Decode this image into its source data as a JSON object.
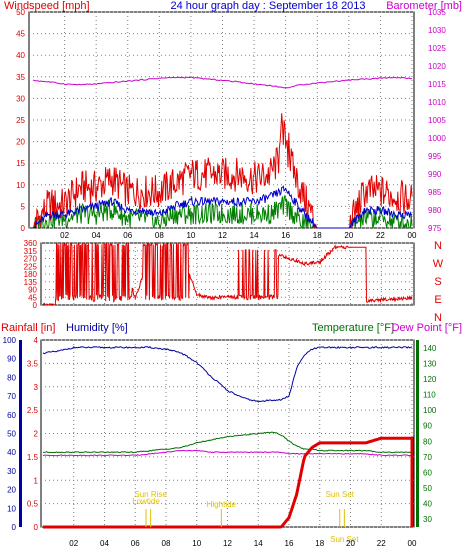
{
  "title": "24 hour graph day : September 18 2013",
  "colors": {
    "wind": "#e00000",
    "wind_avg": "#0000cc",
    "gust": "#008000",
    "baro": "#cc00cc",
    "humidity": "#0000a0",
    "temperature": "#007000",
    "dewpoint": "#cc00cc",
    "rain": "#e00000",
    "annotation": "#e0c000",
    "grid": "#808080"
  },
  "x_ticks": [
    "02",
    "04",
    "06",
    "08",
    "10",
    "12",
    "14",
    "16",
    "18",
    "20",
    "22",
    "00"
  ],
  "chart_data": [
    {
      "type": "line",
      "name": "wind-baro",
      "left_label": "Windspeed [mph]",
      "right_label": "Barometer [mb]",
      "left_ticks": [
        "0",
        "5",
        "10",
        "15",
        "20",
        "25",
        "30",
        "35",
        "40",
        "45",
        "50"
      ],
      "right_ticks": [
        "975",
        "980",
        "985",
        "990",
        "995",
        "1000",
        "1005",
        "1010",
        "1015",
        "1020",
        "1025",
        "1030",
        "1035"
      ],
      "ylim_left": [
        0,
        50
      ],
      "ylim_right": [
        975,
        1035
      ],
      "x": [
        0,
        1,
        2,
        3,
        4,
        5,
        6,
        7,
        8,
        9,
        10,
        11,
        12,
        13,
        14,
        15,
        16,
        17,
        18,
        19,
        20,
        21,
        22,
        23,
        24
      ],
      "series": [
        {
          "key": "windspeed",
          "values": [
            0,
            5,
            5,
            9,
            9,
            11,
            8,
            8,
            8,
            10,
            12,
            12,
            12,
            12,
            11,
            12,
            18,
            8,
            0,
            0,
            0,
            8,
            8,
            7,
            6
          ]
        },
        {
          "key": "average",
          "values": [
            0,
            3,
            3,
            4,
            5,
            6,
            4,
            4,
            3,
            5,
            6,
            6,
            6,
            6,
            6,
            7,
            9,
            4,
            0,
            0,
            0,
            4,
            4,
            3,
            3
          ]
        },
        {
          "key": "gust",
          "values": [
            0,
            2,
            2,
            3,
            3,
            4,
            2,
            2,
            1,
            3,
            3,
            3,
            3,
            3,
            3,
            3,
            5,
            1,
            0,
            0,
            0,
            2,
            2,
            1,
            1
          ]
        },
        {
          "key": "barometer",
          "values": [
            1016.0,
            1015.6,
            1015.0,
            1014.8,
            1015.0,
            1015.4,
            1015.8,
            1016.2,
            1016.6,
            1016.8,
            1016.8,
            1016.4,
            1016.0,
            1015.6,
            1015.0,
            1014.6,
            1013.9,
            1014.8,
            1015.3,
            1015.7,
            1016.1,
            1016.4,
            1016.6,
            1016.8,
            1016.5
          ]
        }
      ]
    },
    {
      "type": "line",
      "name": "wind-direction",
      "left_ticks": [
        "0",
        "45",
        "90",
        "135",
        "180",
        "225",
        "270",
        "315",
        "360"
      ],
      "right_ticks": [
        "N",
        "W",
        "S",
        "E",
        "N"
      ],
      "ylim": [
        0,
        360
      ],
      "x": [
        0,
        1,
        2,
        3,
        4,
        5,
        6,
        7,
        8,
        9,
        10,
        11,
        12,
        13,
        14,
        15,
        16,
        17,
        18,
        19,
        20,
        21,
        22,
        23,
        24
      ],
      "series": [
        {
          "key": "direction",
          "values": [
            0,
            0,
            180,
            320,
            30,
            320,
            40,
            300,
            20,
            300,
            60,
            40,
            50,
            40,
            30,
            300,
            270,
            240,
            250,
            335,
            335,
            20,
            30,
            35,
            40
          ]
        }
      ]
    },
    {
      "type": "line",
      "name": "rain-humidity-temp",
      "rain_label": "Rainfall [in]",
      "humidity_label": "Humidity [%]",
      "temp_label": "Temperature [°F]",
      "dew_label": "Dew Point [°F]",
      "rain_ticks": [
        "0",
        "0.5",
        "1",
        "1.5",
        "2",
        "2.5",
        "3",
        "3.5",
        "4"
      ],
      "humidity_ticks": [
        "0",
        "10",
        "20",
        "30",
        "40",
        "50",
        "60",
        "70",
        "80",
        "90",
        "100"
      ],
      "temp_ticks": [
        "30",
        "40",
        "50",
        "60",
        "70",
        "80",
        "90",
        "100",
        "110",
        "120",
        "130",
        "140"
      ],
      "ylim_rain": [
        0,
        4
      ],
      "ylim_humidity": [
        0,
        100
      ],
      "ylim_temp": [
        25,
        145
      ],
      "x": [
        0,
        1,
        2,
        3,
        4,
        5,
        6,
        7,
        8,
        9,
        10,
        11,
        12,
        13,
        14,
        15,
        15.5,
        16,
        16.5,
        17,
        17.5,
        18,
        19,
        20,
        21,
        22,
        23,
        24
      ],
      "series": [
        {
          "key": "humidity",
          "values": [
            93,
            94,
            96,
            96,
            96,
            96,
            96,
            96,
            95,
            93,
            88,
            80,
            73,
            69,
            67,
            68,
            68,
            70,
            85,
            92,
            95,
            96,
            96,
            96,
            96,
            96,
            96,
            96
          ]
        },
        {
          "key": "temperature",
          "values": [
            73,
            73,
            73,
            73,
            73,
            73,
            73,
            74,
            75,
            76,
            79,
            81,
            83,
            84,
            85,
            86,
            84,
            80,
            77,
            75,
            75,
            74,
            74,
            74,
            74,
            73,
            73,
            73
          ]
        },
        {
          "key": "dewpoint",
          "values": [
            71,
            71,
            71,
            71,
            71,
            71,
            71,
            72,
            73,
            74,
            74,
            73,
            73,
            73,
            73,
            73,
            73,
            72,
            72,
            72,
            72,
            72,
            72,
            72,
            72,
            71,
            71,
            71
          ]
        },
        {
          "key": "rainfall",
          "values": [
            0,
            0,
            0,
            0,
            0,
            0,
            0,
            0,
            0,
            0,
            0,
            0,
            0,
            0,
            0,
            0,
            0,
            0.2,
            0.7,
            1.5,
            1.7,
            1.8,
            1.8,
            1.8,
            1.8,
            1.9,
            1.9,
            1.9
          ]
        }
      ],
      "annotations": [
        {
          "text": "Lowtide",
          "x": 6.7
        },
        {
          "text": "Sun Rise",
          "x": 7.0
        },
        {
          "text": "Hightide",
          "x": 11.6
        },
        {
          "text": "Sun Set",
          "x": 19.3
        },
        {
          "text": "Sun Set",
          "x": 19.6
        }
      ]
    }
  ]
}
